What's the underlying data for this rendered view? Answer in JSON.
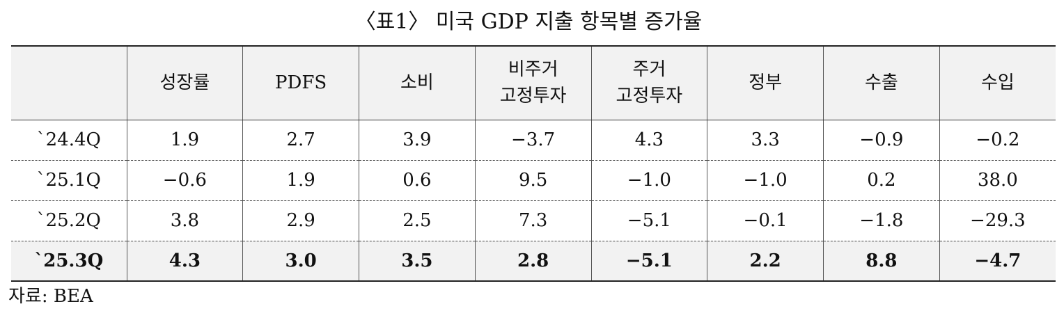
{
  "title": "〈표1〉 미국 GDP 지출 항목별 증가율",
  "table": {
    "headers": [
      {
        "line1": "",
        "line2": ""
      },
      {
        "line1": "성장률",
        "line2": ""
      },
      {
        "line1": "PDFS",
        "line2": ""
      },
      {
        "line1": "소비",
        "line2": ""
      },
      {
        "line1": "비주거",
        "line2": "고정투자"
      },
      {
        "line1": "주거",
        "line2": "고정투자"
      },
      {
        "line1": "정부",
        "line2": ""
      },
      {
        "line1": "수출",
        "line2": ""
      },
      {
        "line1": "수입",
        "line2": ""
      }
    ],
    "rows": [
      {
        "label": "`24.4Q",
        "values": [
          "1.9",
          "2.7",
          "3.9",
          "−3.7",
          "4.3",
          "3.3",
          "−0.9",
          "−0.2"
        ]
      },
      {
        "label": "`25.1Q",
        "values": [
          "−0.6",
          "1.9",
          "0.6",
          "9.5",
          "−1.0",
          "−1.0",
          "0.2",
          "38.0"
        ]
      },
      {
        "label": "`25.2Q",
        "values": [
          "3.8",
          "2.9",
          "2.5",
          "7.3",
          "−5.1",
          "−0.1",
          "−1.8",
          "−29.3"
        ]
      },
      {
        "label": "`25.3Q",
        "values": [
          "4.3",
          "3.0",
          "3.5",
          "2.8",
          "−5.1",
          "2.2",
          "8.8",
          "−4.7"
        ]
      }
    ]
  },
  "source": "자료: BEA"
}
